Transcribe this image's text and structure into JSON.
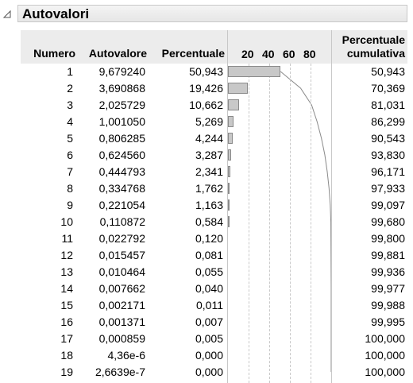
{
  "report": {
    "title": "Autovalori",
    "collapse_icon": "disclosure-triangle-icon"
  },
  "table": {
    "headers": {
      "numero": "Numero",
      "autovalore": "Autovalore",
      "percentuale": "Percentuale",
      "cumulativa_line1": "Percentuale",
      "cumulativa_line2": "cumulativa"
    },
    "chart_ticks": [
      "20",
      "40",
      "60",
      "80"
    ],
    "rows": [
      {
        "numero": "1",
        "autovalore": "9,679240",
        "percentuale": "50,943",
        "cumulativa": "50,943"
      },
      {
        "numero": "2",
        "autovalore": "3,690868",
        "percentuale": "19,426",
        "cumulativa": "70,369"
      },
      {
        "numero": "3",
        "autovalore": "2,025729",
        "percentuale": "10,662",
        "cumulativa": "81,031"
      },
      {
        "numero": "4",
        "autovalore": "1,001050",
        "percentuale": "5,269",
        "cumulativa": "86,299"
      },
      {
        "numero": "5",
        "autovalore": "0,806285",
        "percentuale": "4,244",
        "cumulativa": "90,543"
      },
      {
        "numero": "6",
        "autovalore": "0,624560",
        "percentuale": "3,287",
        "cumulativa": "93,830"
      },
      {
        "numero": "7",
        "autovalore": "0,444793",
        "percentuale": "2,341",
        "cumulativa": "96,171"
      },
      {
        "numero": "8",
        "autovalore": "0,334768",
        "percentuale": "1,762",
        "cumulativa": "97,933"
      },
      {
        "numero": "9",
        "autovalore": "0,221054",
        "percentuale": "1,163",
        "cumulativa": "99,097"
      },
      {
        "numero": "10",
        "autovalore": "0,110872",
        "percentuale": "0,584",
        "cumulativa": "99,680"
      },
      {
        "numero": "11",
        "autovalore": "0,022792",
        "percentuale": "0,120",
        "cumulativa": "99,800"
      },
      {
        "numero": "12",
        "autovalore": "0,015457",
        "percentuale": "0,081",
        "cumulativa": "99,881"
      },
      {
        "numero": "13",
        "autovalore": "0,010464",
        "percentuale": "0,055",
        "cumulativa": "99,936"
      },
      {
        "numero": "14",
        "autovalore": "0,007662",
        "percentuale": "0,040",
        "cumulativa": "99,977"
      },
      {
        "numero": "15",
        "autovalore": "0,002171",
        "percentuale": "0,011",
        "cumulativa": "99,988"
      },
      {
        "numero": "16",
        "autovalore": "0,001371",
        "percentuale": "0,007",
        "cumulativa": "99,995"
      },
      {
        "numero": "17",
        "autovalore": "0,000859",
        "percentuale": "0,005",
        "cumulativa": "100,000"
      },
      {
        "numero": "18",
        "autovalore": "4,36e-6",
        "percentuale": "0,000",
        "cumulativa": "100,000"
      },
      {
        "numero": "19",
        "autovalore": "2,6639e-7",
        "percentuale": "0,000",
        "cumulativa": "100,000"
      }
    ]
  },
  "chart_data": {
    "type": "bar",
    "categories": [
      "1",
      "2",
      "3",
      "4",
      "5",
      "6",
      "7",
      "8",
      "9",
      "10",
      "11",
      "12",
      "13",
      "14",
      "15",
      "16",
      "17",
      "18",
      "19"
    ],
    "series": [
      {
        "values": [
          50.943,
          19.426,
          10.662,
          5.269,
          4.244,
          3.287,
          2.341,
          1.762,
          1.163,
          0.584,
          0.12,
          0.081,
          0.055,
          0.04,
          0.011,
          0.007,
          0.005,
          0.0,
          0.0
        ]
      }
    ],
    "cumulative": [
      50.943,
      70.369,
      81.031,
      86.299,
      90.543,
      93.83,
      96.171,
      97.933,
      99.097,
      99.68,
      99.8,
      99.881,
      99.936,
      99.977,
      99.988,
      99.995,
      100.0,
      100.0,
      100.0
    ],
    "x_ticks": [
      20,
      40,
      60,
      80
    ],
    "xlim": [
      0,
      100
    ],
    "grid": true,
    "bar_color": "#c8c8c8",
    "line_color": "#8a8a8a"
  }
}
